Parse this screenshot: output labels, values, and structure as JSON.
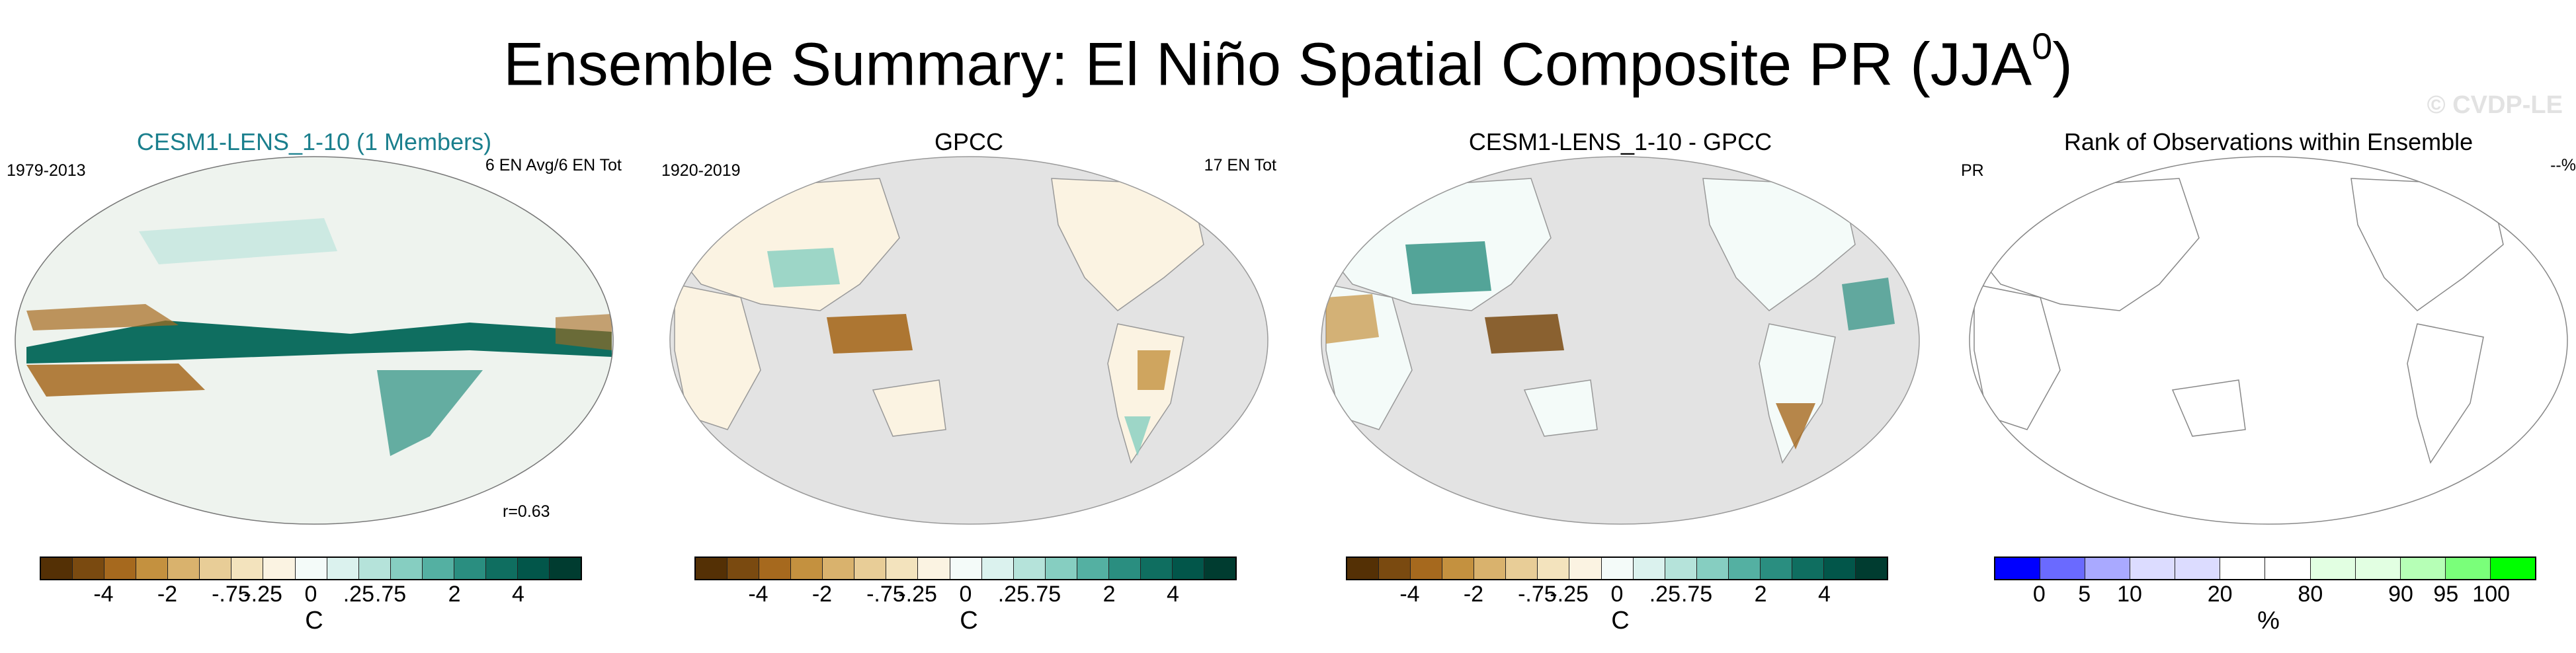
{
  "header": {
    "title": "Ensemble Summary: El Niño Spatial Composite PR (JJA",
    "title_superscript": "0",
    "title_close": ")",
    "watermark": "© CVDP-LE"
  },
  "panels": [
    {
      "title": "CESM1-LENS_1-10 (1 Members)",
      "left_label": "1979-2013",
      "right_label": "6 EN Avg/6 EN Tot",
      "corr_label": "r=0.63",
      "ocean_fill": "#eef3ee",
      "colorbar": {
        "colors": [
          "#543005",
          "#7a4a10",
          "#a6691e",
          "#c4913f",
          "#d9b26d",
          "#e8cd97",
          "#f3e3bd",
          "#fbf3e2",
          "#f4fbf9",
          "#dbf2ee",
          "#b5e3da",
          "#86cec1",
          "#54b0a2",
          "#2a8e80",
          "#0f6e60",
          "#02564a",
          "#003c30"
        ],
        "ticks": [
          "-4",
          "-2",
          "-.75",
          "-.25",
          "0",
          ".25",
          ".75",
          "2",
          "4"
        ],
        "unit": "C"
      }
    },
    {
      "title": "GPCC",
      "left_label": "1920-2019",
      "right_label": "17 EN Tot",
      "ocean_fill": "#e3e3e3",
      "colorbar": {
        "colors": [
          "#543005",
          "#7a4a10",
          "#a6691e",
          "#c4913f",
          "#d9b26d",
          "#e8cd97",
          "#f3e3bd",
          "#fbf3e2",
          "#f4fbf9",
          "#dbf2ee",
          "#b5e3da",
          "#86cec1",
          "#54b0a2",
          "#2a8e80",
          "#0f6e60",
          "#02564a",
          "#003c30"
        ],
        "ticks": [
          "-4",
          "-2",
          "-.75",
          "-.25",
          "0",
          ".25",
          ".75",
          "2",
          "4"
        ],
        "unit": "C"
      }
    },
    {
      "title": "CESM1-LENS_1-10 - GPCC",
      "ocean_fill": "#e3e3e3",
      "colorbar": {
        "colors": [
          "#543005",
          "#7a4a10",
          "#a6691e",
          "#c4913f",
          "#d9b26d",
          "#e8cd97",
          "#f3e3bd",
          "#fbf3e2",
          "#f4fbf9",
          "#dbf2ee",
          "#b5e3da",
          "#86cec1",
          "#54b0a2",
          "#2a8e80",
          "#0f6e60",
          "#02564a",
          "#003c30"
        ],
        "ticks": [
          "-4",
          "-2",
          "-.75",
          "-.25",
          "0",
          ".25",
          ".75",
          "2",
          "4"
        ],
        "unit": "C"
      }
    },
    {
      "title": "Rank of Observations within Ensemble",
      "left_label": "PR",
      "right_label": "--%",
      "ocean_fill": "#ffffff",
      "colorbar": {
        "colors": [
          "#0000ff",
          "#6a6aff",
          "#a9a9ff",
          "#dcdcff",
          "#dcdcff",
          "#ffffff",
          "#ffffff",
          "#e2ffe2",
          "#e2ffe2",
          "#b6ffb6",
          "#7aff7a",
          "#00ff00"
        ],
        "ticks": [
          "0",
          "5",
          "10",
          "20",
          "80",
          "90",
          "95",
          "100"
        ],
        "unit": "%"
      }
    }
  ]
}
